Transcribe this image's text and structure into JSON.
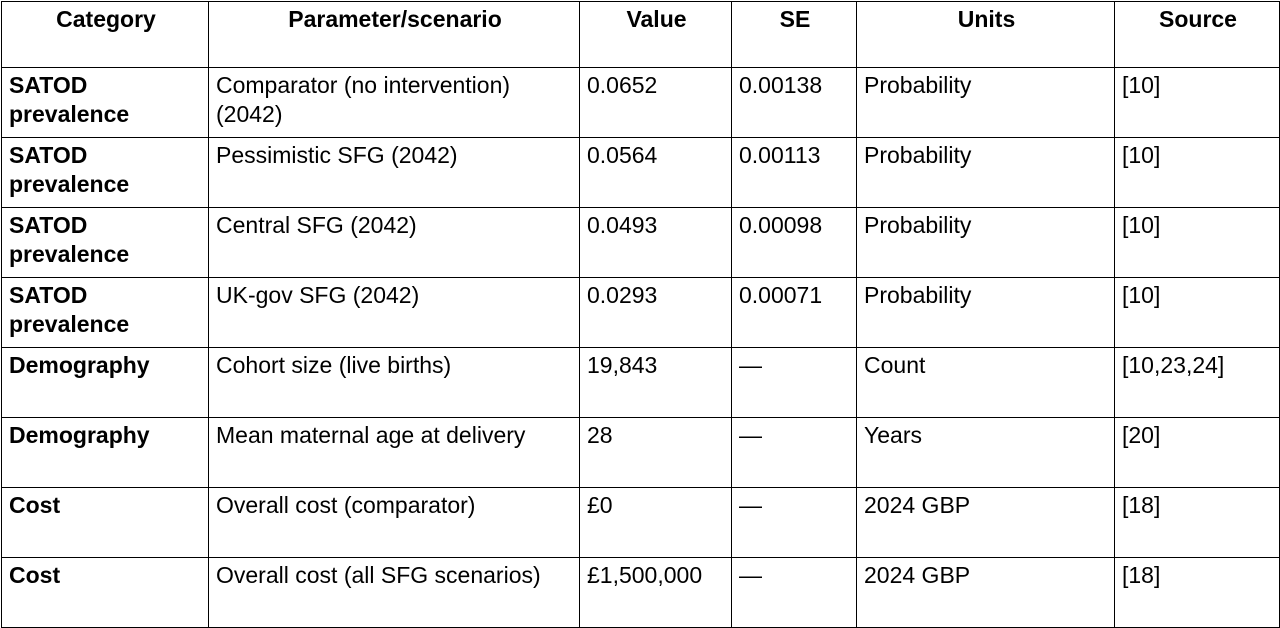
{
  "table": {
    "headers": [
      "Category",
      "Parameter/scenario",
      "Value",
      "SE",
      "Units",
      "Source"
    ],
    "rows": [
      [
        "SATOD prevalence",
        "Comparator (no intervention) (2042)",
        "0.0652",
        "0.00138",
        "Probability",
        "[10]"
      ],
      [
        "SATOD prevalence",
        "Pessimistic SFG (2042)",
        "0.0564",
        "0.00113",
        "Probability",
        "[10]"
      ],
      [
        "SATOD prevalence",
        "Central SFG (2042)",
        "0.0493",
        "0.00098",
        "Probability",
        "[10]"
      ],
      [
        "SATOD prevalence",
        "UK-gov SFG (2042)",
        "0.0293",
        "0.00071",
        "Probability",
        "[10]"
      ],
      [
        "Demography",
        "Cohort size (live births)",
        "19,843",
        "—",
        "Count",
        "[10,23,24]"
      ],
      [
        "Demography",
        "Mean maternal age at delivery",
        "28",
        "—",
        "Years",
        "[20]"
      ],
      [
        "Cost",
        "Overall cost (comparator)",
        "£0",
        "—",
        "2024 GBP",
        "[18]"
      ],
      [
        "Cost",
        "Overall cost (all SFG scenarios)",
        "£1,500,000",
        "—",
        "2024 GBP",
        "[18]"
      ]
    ]
  }
}
